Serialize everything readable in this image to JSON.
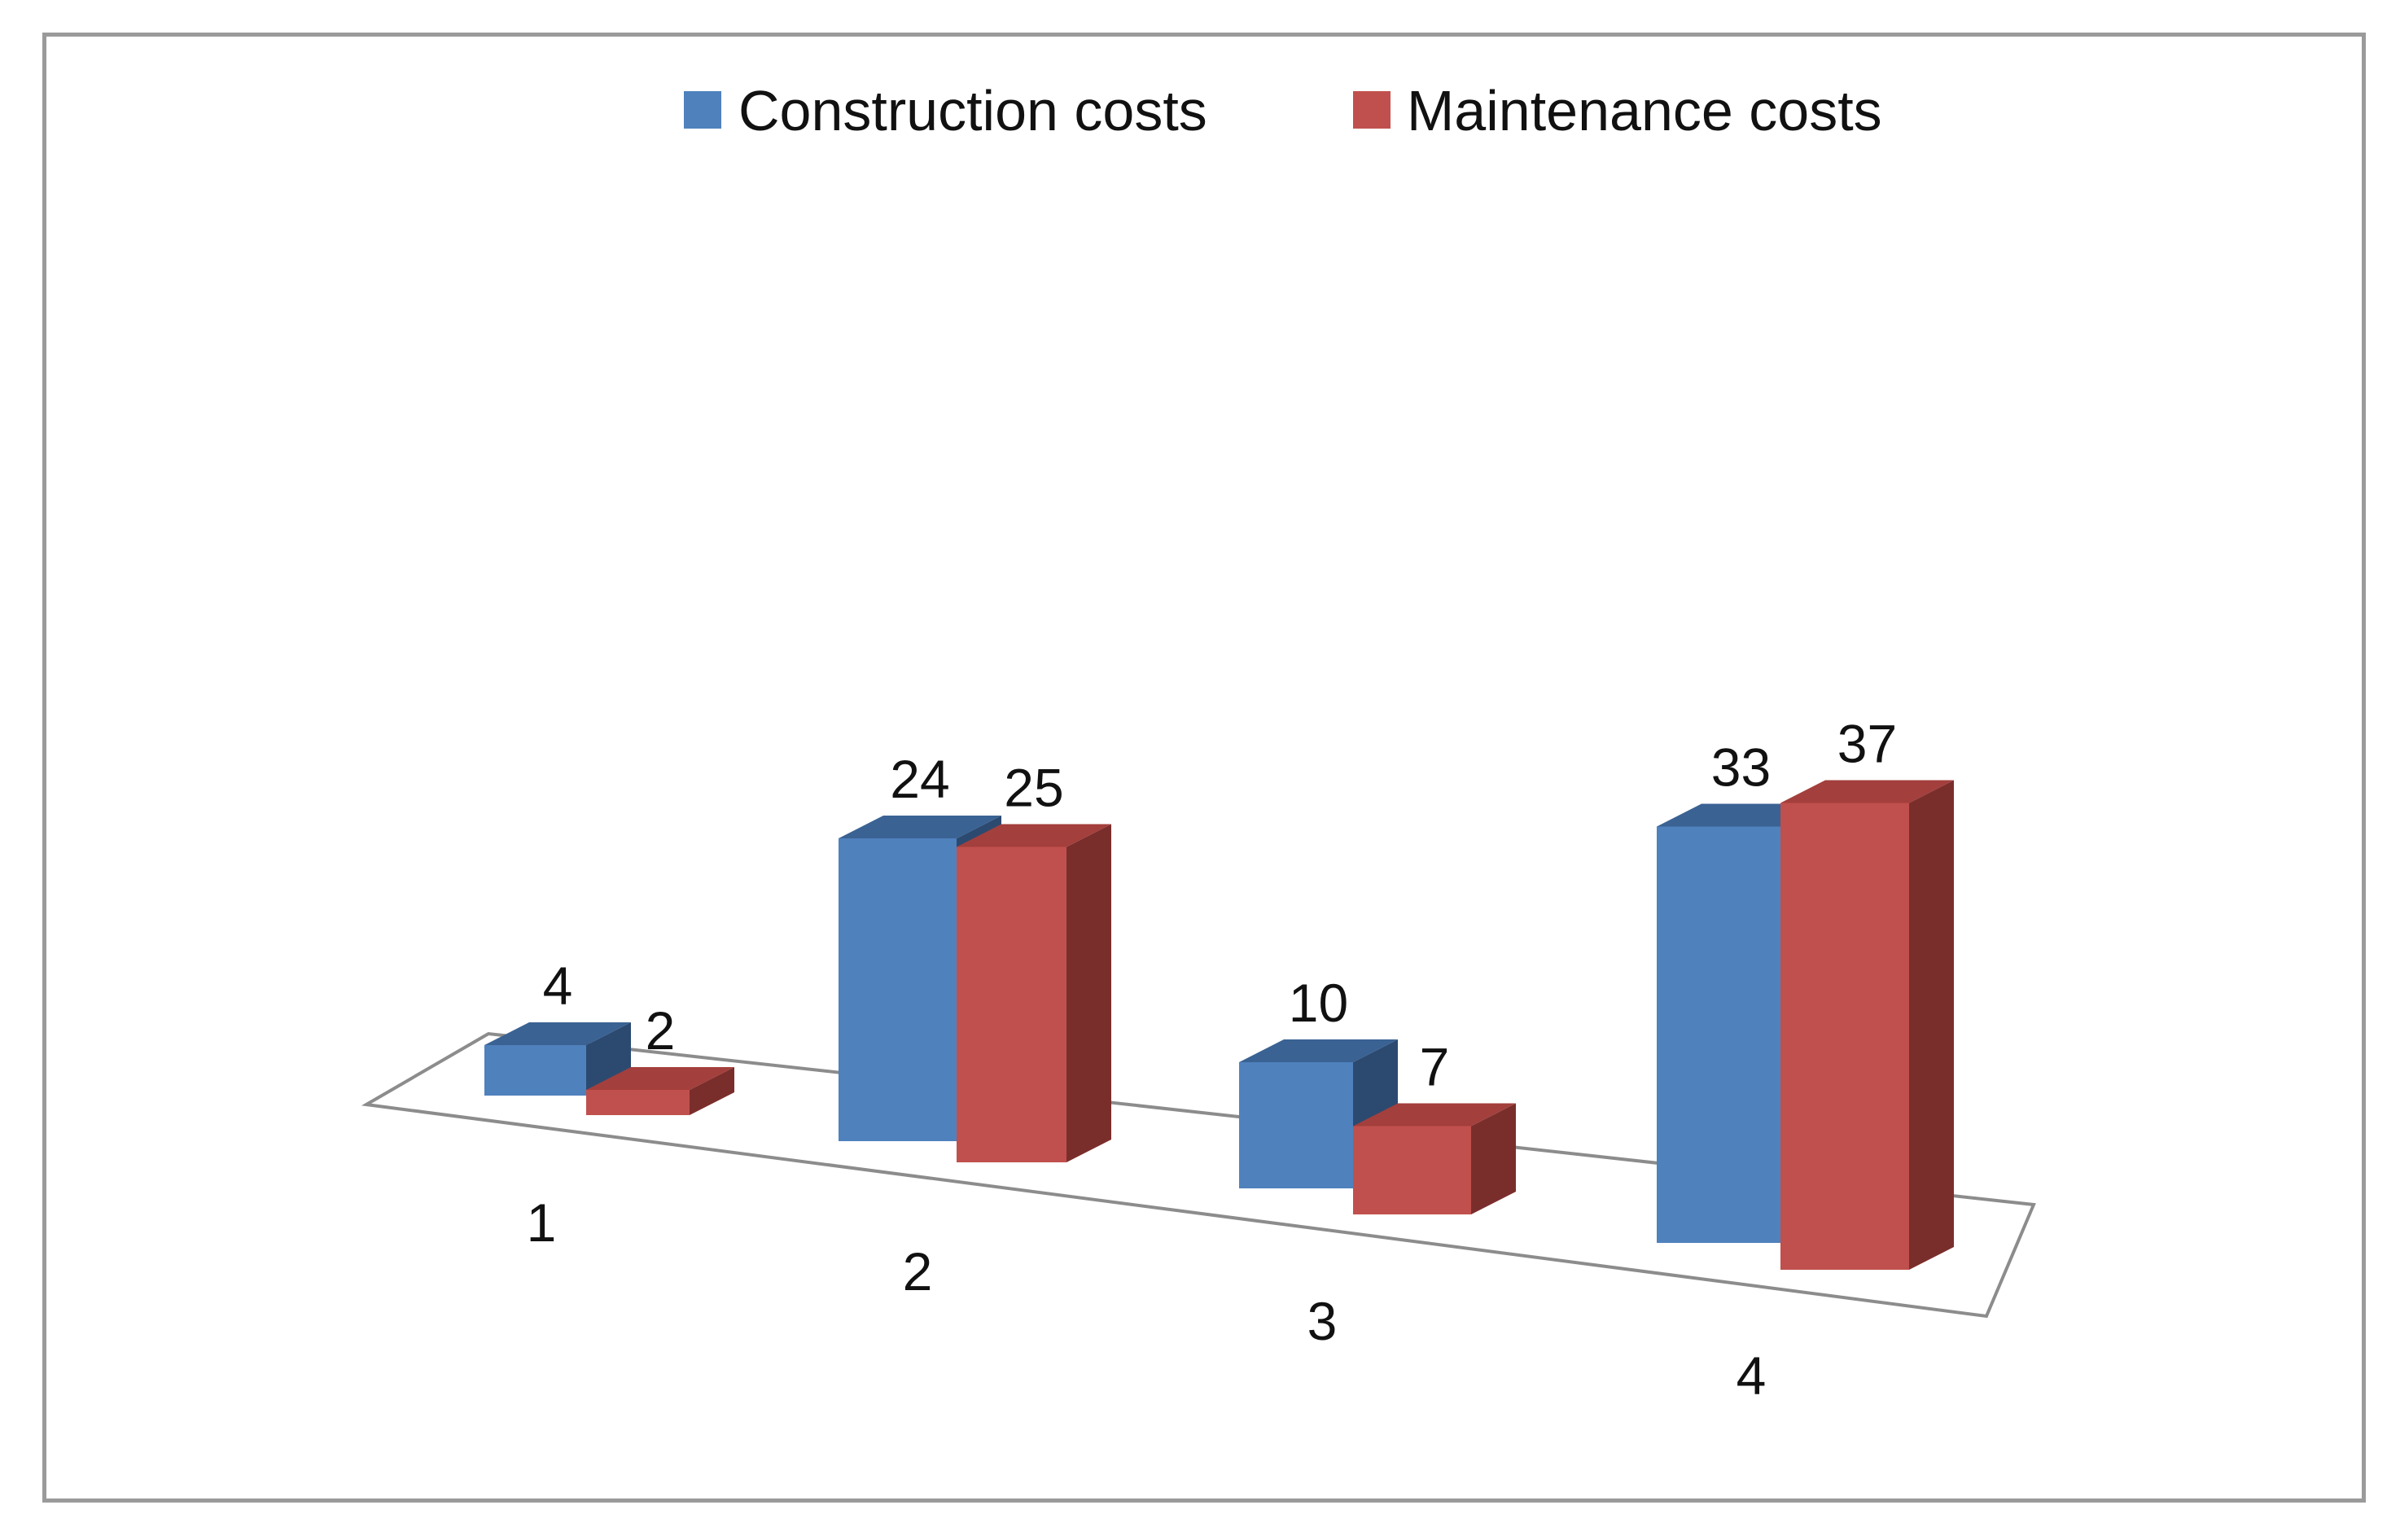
{
  "chart_data": {
    "type": "bar",
    "title": "",
    "xlabel": "",
    "ylabel": "",
    "categories": [
      "1",
      "2",
      "3",
      "4"
    ],
    "series": [
      {
        "name": "Construction costs",
        "values": [
          4,
          24,
          10,
          33
        ]
      },
      {
        "name": "Maintenance costs",
        "values": [
          2,
          25,
          7,
          37
        ]
      }
    ],
    "ylim": [
      0,
      37
    ],
    "grid": false,
    "legend": "top-center",
    "colors": {
      "construction_front": "#4f81bd",
      "construction_top": "#3a6293",
      "construction_side": "#2c4a70",
      "maintenance_front": "#c0504d",
      "maintenance_top": "#a33f3c",
      "maintenance_side": "#7a2e2c",
      "floor_stroke": "#8c8c8c"
    }
  }
}
